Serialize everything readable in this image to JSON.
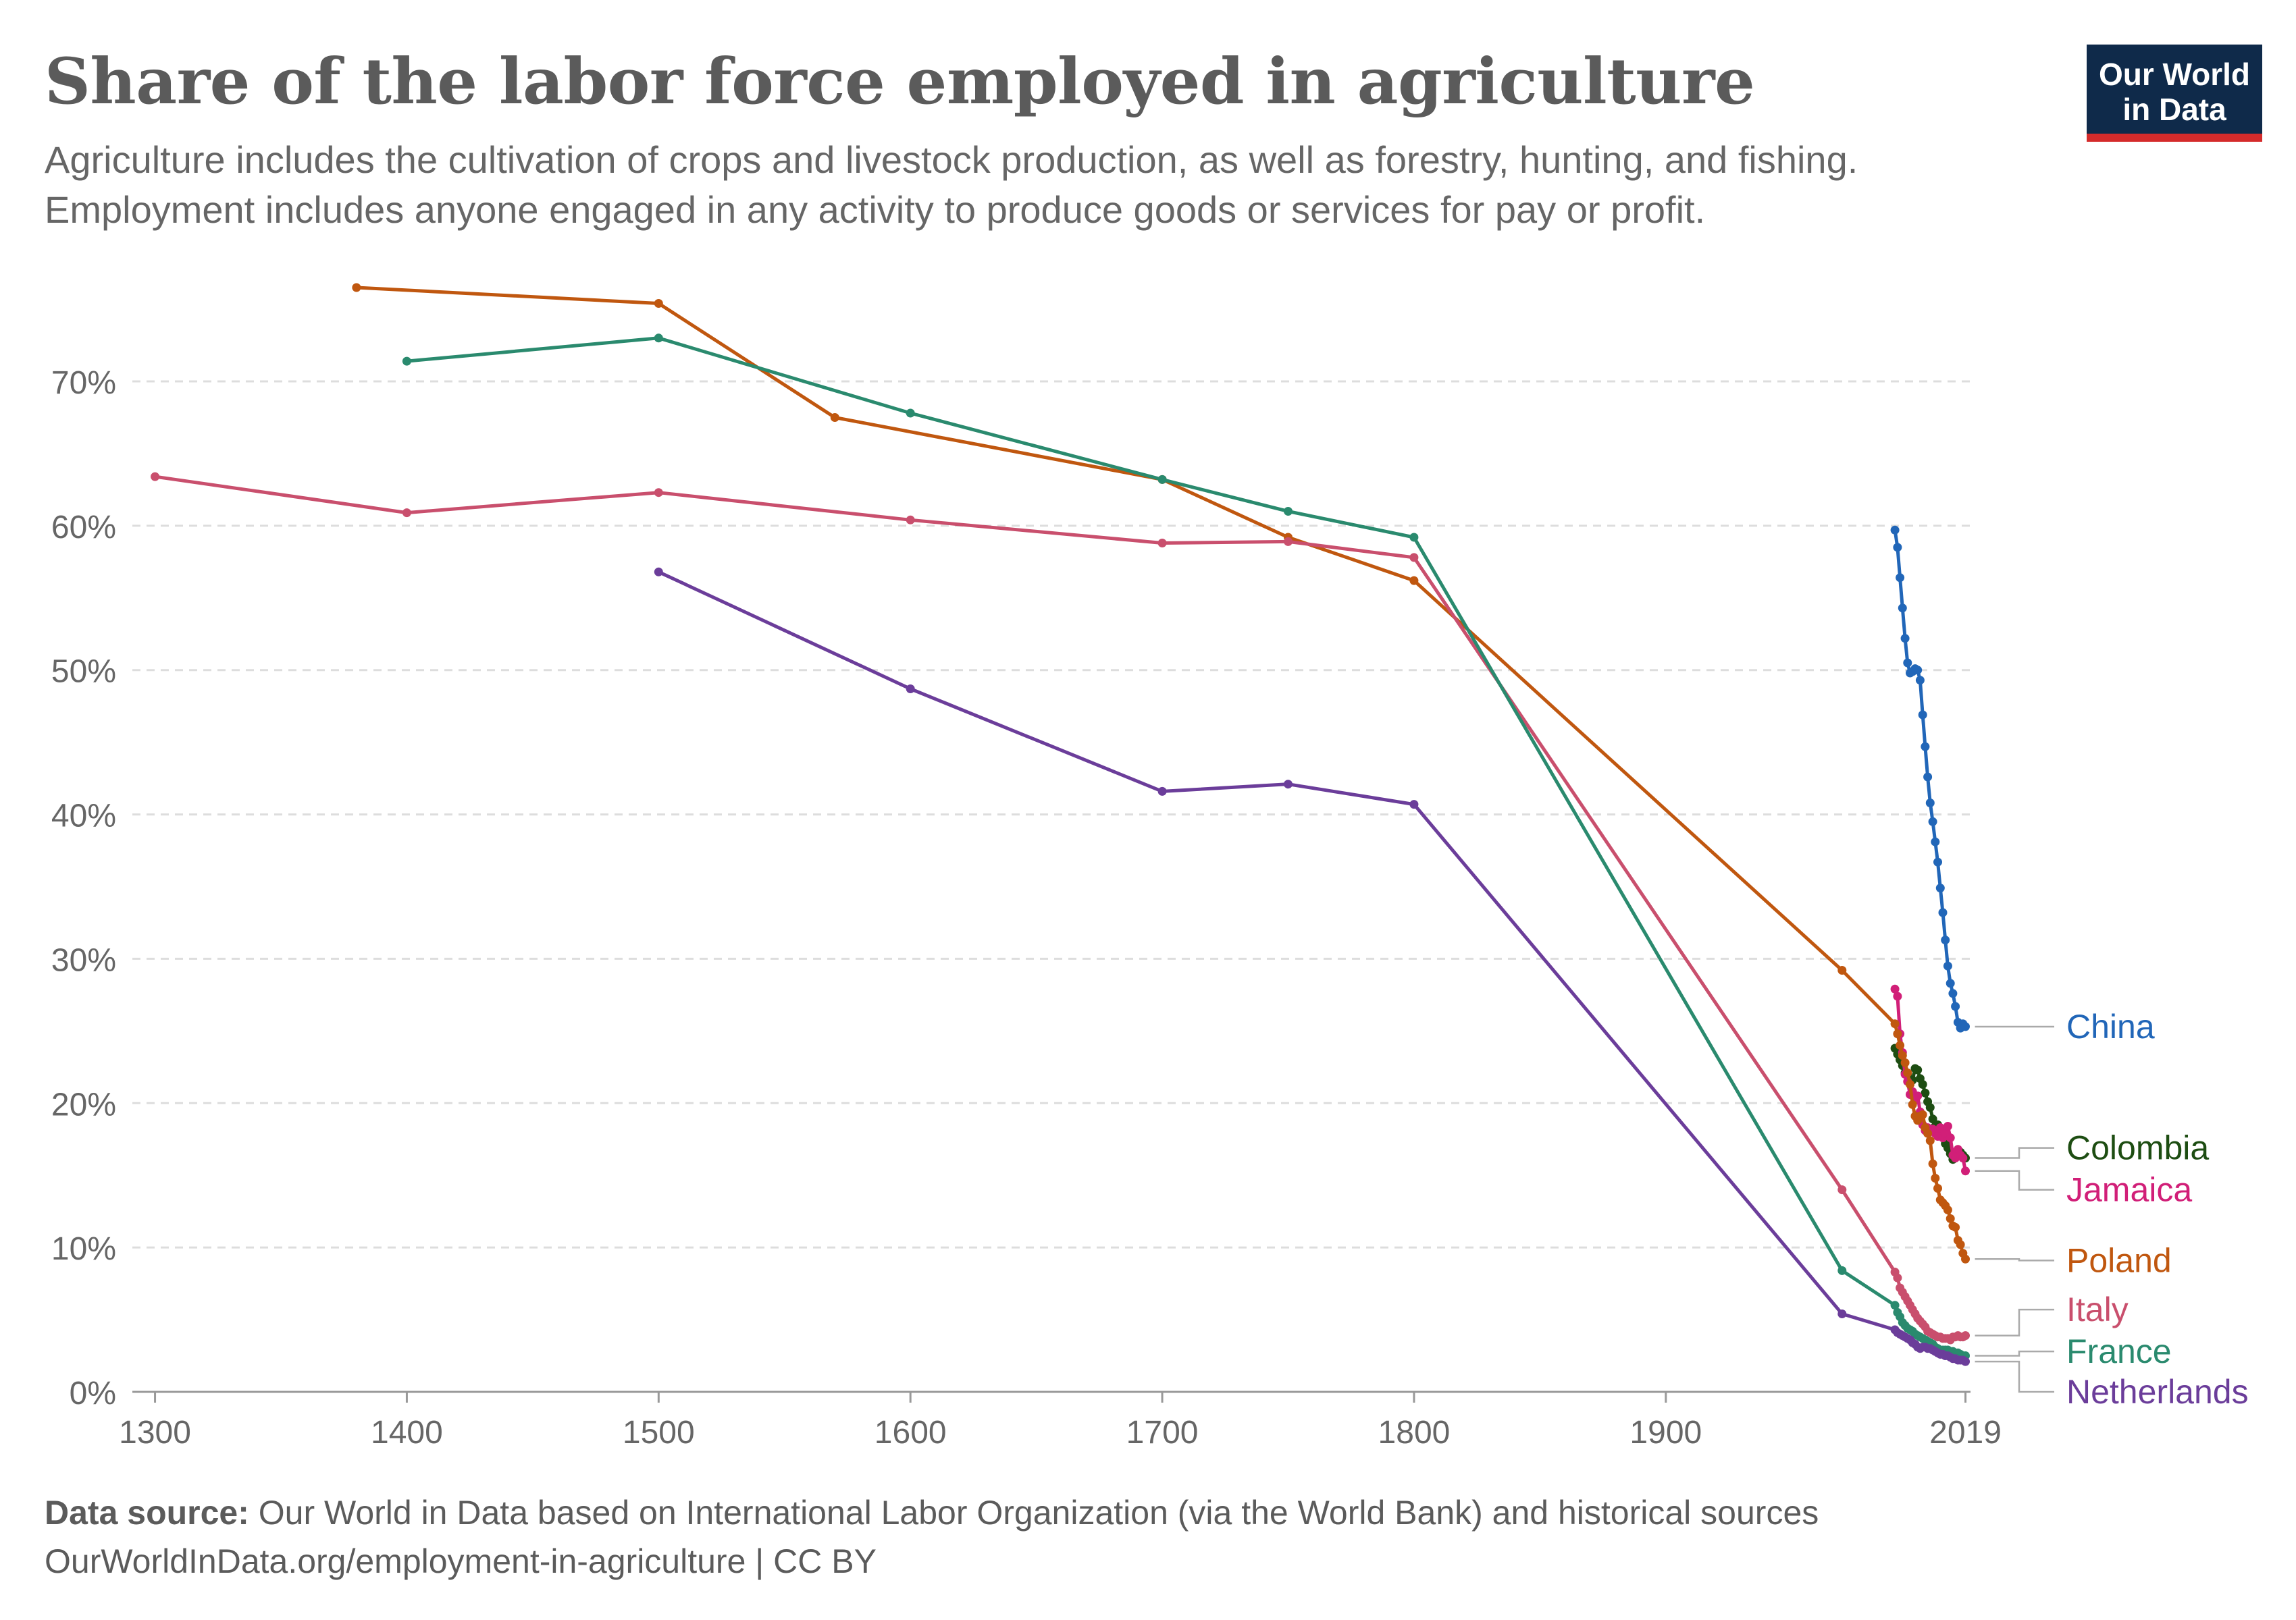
{
  "header": {
    "title": "Share of the labor force employed in agriculture",
    "subtitle_line1": "Agriculture includes the cultivation of crops and livestock production, as well as forestry, hunting, and fishing.",
    "subtitle_line2": "Employment includes anyone engaged in any activity to produce goods or services for pay or profit.",
    "logo_line1": "Our World",
    "logo_line2": "in Data"
  },
  "footer": {
    "source_label": "Data source:",
    "source_text": " Our World in Data based on International Labor Organization (via the World Bank) and historical sources",
    "url_text": "OurWorldInData.org/employment-in-agriculture | CC BY"
  },
  "colors": {
    "China": "#2166b8",
    "Colombia": "#1d4d12",
    "Jamaica": "#d11f78",
    "Poland": "#c0570f",
    "Italy": "#c94f6d",
    "France": "#2a8a6e",
    "Netherlands": "#6b3d9a",
    "grid": "#dddddd",
    "axis": "#999999",
    "tick_text": "#666666"
  },
  "chart_data": {
    "type": "line",
    "title": "Share of the labor force employed in agriculture",
    "xlabel": "",
    "ylabel": "",
    "xlim": [
      1291,
      2021
    ],
    "ylim": [
      0,
      78
    ],
    "x_ticks": [
      1300,
      1400,
      1500,
      1600,
      1700,
      1800,
      1900,
      2019
    ],
    "x_tick_labels": [
      "1300",
      "1400",
      "1500",
      "1600",
      "1700",
      "1800",
      "1900",
      "2019"
    ],
    "y_ticks": [
      0,
      10,
      20,
      30,
      40,
      50,
      60,
      70
    ],
    "y_tick_labels": [
      "0%",
      "10%",
      "20%",
      "30%",
      "40%",
      "50%",
      "60%",
      "70%"
    ],
    "grid": "horizontal dashed",
    "legend": "right, labels at line ends",
    "series": [
      {
        "name": "China",
        "x": [
          1991,
          1992,
          1993,
          1994,
          1995,
          1996,
          1997,
          1998,
          1999,
          2000,
          2001,
          2002,
          2003,
          2004,
          2005,
          2006,
          2007,
          2008,
          2009,
          2010,
          2011,
          2012,
          2013,
          2014,
          2015,
          2016,
          2017,
          2018,
          2019
        ],
        "y": [
          59.7,
          58.5,
          56.4,
          54.3,
          52.2,
          50.5,
          49.8,
          49.9,
          50.1,
          50.0,
          49.3,
          46.9,
          44.7,
          42.6,
          40.8,
          39.5,
          38.1,
          36.7,
          34.9,
          33.2,
          31.3,
          29.5,
          28.3,
          27.6,
          26.7,
          25.6,
          25.2,
          25.5,
          25.3
        ]
      },
      {
        "name": "Colombia",
        "x": [
          1991,
          1992,
          1993,
          1994,
          1995,
          1996,
          1997,
          1998,
          1999,
          2000,
          2001,
          2002,
          2003,
          2004,
          2005,
          2006,
          2007,
          2008,
          2009,
          2010,
          2011,
          2012,
          2013,
          2014,
          2015,
          2016,
          2017,
          2018,
          2019
        ],
        "y": [
          23.8,
          23.4,
          23.0,
          22.6,
          22.1,
          22.0,
          21.5,
          21.6,
          22.4,
          22.3,
          21.7,
          21.3,
          20.7,
          20.1,
          19.7,
          18.9,
          18.4,
          18.5,
          18.1,
          17.7,
          17.2,
          16.9,
          16.5,
          16.1,
          16.3,
          16.5,
          16.6,
          16.4,
          16.2
        ]
      },
      {
        "name": "Jamaica",
        "x": [
          1991,
          1992,
          1993,
          1994,
          1995,
          1996,
          1997,
          1998,
          1999,
          2000,
          2001,
          2002,
          2003,
          2004,
          2005,
          2006,
          2007,
          2008,
          2009,
          2010,
          2011,
          2012,
          2013,
          2014,
          2015,
          2016,
          2017,
          2018,
          2019
        ],
        "y": [
          27.9,
          27.4,
          24.8,
          23.5,
          22.0,
          21.5,
          20.6,
          20.8,
          20.2,
          20.5,
          19.4,
          18.5,
          18.1,
          18.3,
          18.1,
          18.2,
          17.9,
          17.7,
          18.3,
          17.6,
          17.9,
          18.4,
          17.6,
          16.4,
          16.2,
          16.8,
          16.4,
          16.2,
          15.3
        ]
      },
      {
        "name": "Poland",
        "x": [
          1380,
          1500,
          1570,
          1700,
          1750,
          1800,
          1970,
          1991,
          1992,
          1993,
          1994,
          1995,
          1996,
          1997,
          1998,
          1999,
          2000,
          2001,
          2002,
          2003,
          2004,
          2005,
          2006,
          2007,
          2008,
          2009,
          2010,
          2011,
          2012,
          2013,
          2014,
          2015,
          2016,
          2017,
          2018,
          2019
        ],
        "y": [
          76.5,
          75.4,
          67.5,
          63.2,
          59.2,
          56.2,
          29.2,
          25.5,
          24.8,
          24.0,
          23.3,
          22.8,
          22.1,
          21.3,
          19.9,
          19.1,
          18.8,
          19.1,
          19.2,
          18.3,
          17.9,
          17.4,
          15.8,
          14.8,
          14.1,
          13.3,
          13.1,
          12.9,
          12.6,
          12.0,
          11.5,
          11.4,
          10.5,
          10.2,
          9.6,
          9.2
        ]
      },
      {
        "name": "Italy",
        "x": [
          1300,
          1400,
          1500,
          1600,
          1700,
          1750,
          1800,
          1970,
          1991,
          1992,
          1993,
          1994,
          1995,
          1996,
          1997,
          1998,
          1999,
          2000,
          2001,
          2002,
          2003,
          2004,
          2005,
          2006,
          2007,
          2008,
          2009,
          2010,
          2011,
          2012,
          2013,
          2014,
          2015,
          2016,
          2017,
          2018,
          2019
        ],
        "y": [
          63.4,
          60.9,
          62.3,
          60.4,
          58.8,
          58.9,
          57.8,
          14.0,
          8.3,
          7.9,
          7.2,
          6.9,
          6.6,
          6.3,
          6.0,
          5.7,
          5.4,
          5.1,
          4.9,
          4.7,
          4.5,
          4.2,
          4.1,
          4.0,
          3.9,
          3.8,
          3.8,
          3.7,
          3.7,
          3.7,
          3.6,
          3.8,
          3.8,
          3.9,
          3.8,
          3.8,
          3.9
        ]
      },
      {
        "name": "France",
        "x": [
          1400,
          1500,
          1600,
          1700,
          1750,
          1800,
          1970,
          1991,
          1992,
          1993,
          1994,
          1995,
          1996,
          1997,
          1998,
          1999,
          2000,
          2001,
          2002,
          2003,
          2004,
          2005,
          2006,
          2007,
          2008,
          2009,
          2010,
          2011,
          2012,
          2013,
          2014,
          2015,
          2016,
          2017,
          2018,
          2019
        ],
        "y": [
          71.4,
          73.0,
          67.8,
          63.2,
          61.0,
          59.2,
          8.4,
          6.0,
          5.5,
          5.2,
          4.8,
          4.6,
          4.4,
          4.3,
          4.2,
          4.0,
          3.9,
          3.8,
          3.7,
          3.6,
          3.5,
          3.4,
          3.3,
          3.1,
          3.0,
          2.9,
          2.9,
          2.9,
          2.9,
          2.8,
          2.8,
          2.7,
          2.7,
          2.6,
          2.5,
          2.5
        ]
      },
      {
        "name": "Netherlands",
        "x": [
          1500,
          1600,
          1700,
          1750,
          1800,
          1970,
          1991,
          1992,
          1993,
          1994,
          1995,
          1996,
          1997,
          1998,
          1999,
          2000,
          2001,
          2002,
          2003,
          2004,
          2005,
          2006,
          2007,
          2008,
          2009,
          2010,
          2011,
          2012,
          2013,
          2014,
          2015,
          2016,
          2017,
          2018,
          2019
        ],
        "y": [
          56.8,
          48.7,
          41.6,
          42.1,
          40.7,
          5.4,
          4.3,
          4.1,
          4.0,
          3.9,
          3.8,
          3.7,
          3.6,
          3.4,
          3.3,
          3.1,
          3.0,
          3.1,
          3.1,
          3.0,
          3.0,
          2.9,
          2.8,
          2.7,
          2.6,
          2.6,
          2.5,
          2.5,
          2.4,
          2.3,
          2.3,
          2.2,
          2.2,
          2.2,
          2.1
        ]
      }
    ]
  },
  "labels": [
    {
      "name": "China",
      "text": "China",
      "y": 25.3
    },
    {
      "name": "Colombia",
      "text": "Colombia",
      "y": 16.9
    },
    {
      "name": "Jamaica",
      "text": "Jamaica",
      "y": 14.0
    },
    {
      "name": "Poland",
      "text": "Poland",
      "y": 9.1
    },
    {
      "name": "Italy",
      "text": "Italy",
      "y": 5.7
    },
    {
      "name": "France",
      "text": "France",
      "y": 2.8
    },
    {
      "name": "Netherlands",
      "text": "Netherlands",
      "y": 0.0
    }
  ]
}
